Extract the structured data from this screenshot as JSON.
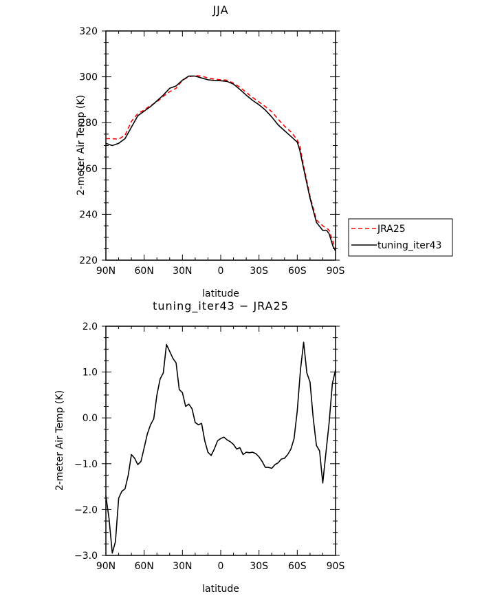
{
  "chart_data": [
    {
      "type": "line",
      "title": "JJA",
      "xlabel": "latitude",
      "ylabel": "2-meter Air Temp (K)",
      "xlim": [
        90,
        -90
      ],
      "ylim": [
        220,
        320
      ],
      "xticks": [
        90,
        60,
        30,
        0,
        -30,
        -60,
        -90
      ],
      "xtick_labels": [
        "90N",
        "60N",
        "30N",
        "0",
        "30S",
        "60S",
        "90S"
      ],
      "yticks": [
        220,
        240,
        260,
        280,
        300,
        320
      ],
      "ytick_labels": [
        "220",
        "240",
        "260",
        "280",
        "300",
        "320"
      ],
      "grid": false,
      "legend": "right",
      "series": [
        {
          "name": "JRA25",
          "color": "#ff0000",
          "dash": "dashed",
          "x": [
            90,
            85,
            80,
            75,
            70,
            65,
            60,
            55,
            50,
            45,
            40,
            35,
            30,
            25,
            20,
            15,
            10,
            5,
            0,
            -5,
            -10,
            -15,
            -20,
            -25,
            -30,
            -35,
            -40,
            -45,
            -50,
            -55,
            -60,
            -62,
            -65,
            -70,
            -75,
            -80,
            -83,
            -85,
            -88,
            -90
          ],
          "y": [
            273,
            273,
            272.8,
            274.5,
            280.5,
            284,
            285.5,
            287.5,
            289,
            291.5,
            293.5,
            295,
            298.5,
            300,
            300.5,
            300.3,
            299.5,
            299,
            298.7,
            298.5,
            297.2,
            295.5,
            293.2,
            291,
            289,
            287,
            284.8,
            281.5,
            278.5,
            276,
            272.5,
            270,
            261,
            248,
            237.5,
            235,
            234,
            233,
            228,
            225
          ]
        },
        {
          "name": "tuning_iter43",
          "color": "#000000",
          "dash": "solid",
          "x": [
            90,
            85,
            80,
            75,
            70,
            65,
            60,
            55,
            50,
            45,
            40,
            35,
            30,
            25,
            20,
            15,
            10,
            5,
            0,
            -5,
            -10,
            -15,
            -20,
            -25,
            -30,
            -35,
            -40,
            -45,
            -50,
            -55,
            -60,
            -62,
            -65,
            -70,
            -75,
            -80,
            -83,
            -85,
            -88,
            -90
          ],
          "y": [
            271,
            270,
            271,
            273,
            278,
            283,
            285,
            287,
            289.5,
            292,
            295,
            296,
            298.5,
            300.3,
            300.3,
            299.5,
            298.7,
            298.4,
            298.3,
            298,
            296.8,
            294.5,
            292,
            289.7,
            287.8,
            285.5,
            282.5,
            279,
            276.5,
            274,
            271.5,
            268,
            260,
            247,
            236.5,
            233,
            233,
            231.5,
            226,
            224
          ]
        }
      ]
    },
    {
      "type": "line",
      "title": "tuning_iter43 − JRA25",
      "xlabel": "latitude",
      "ylabel": "2-meter Air Temp (K)",
      "xlim": [
        90,
        -90
      ],
      "ylim": [
        -3.0,
        2.0
      ],
      "xticks": [
        90,
        60,
        30,
        0,
        -30,
        -60,
        -90
      ],
      "xtick_labels": [
        "90N",
        "60N",
        "30N",
        "0",
        "30S",
        "60S",
        "90S"
      ],
      "yticks": [
        -3.0,
        -2.0,
        -1.0,
        0.0,
        1.0,
        2.0
      ],
      "ytick_labels": [
        "−3.0",
        "−2.0",
        "−1.0",
        "0.0",
        "1.0",
        "2.0"
      ],
      "grid": false,
      "series": [
        {
          "color": "#000000",
          "x": [
            90,
            87.5,
            85,
            82.5,
            80,
            77.5,
            75,
            72.5,
            70,
            67.5,
            65,
            62.5,
            60,
            57.5,
            55,
            52.5,
            50,
            47.5,
            45,
            42.5,
            40,
            37.5,
            35,
            32.5,
            30,
            27.5,
            25,
            22.5,
            20,
            17.5,
            15,
            12.5,
            10,
            7.5,
            5,
            2.5,
            0,
            -2.5,
            -5,
            -7.5,
            -10,
            -12.5,
            -15,
            -17.5,
            -20,
            -22.5,
            -25,
            -27.5,
            -30,
            -32.5,
            -35,
            -37.5,
            -40,
            -42.5,
            -45,
            -47.5,
            -50,
            -52.5,
            -55,
            -57.5,
            -60,
            -62.5,
            -65,
            -67.5,
            -70,
            -72.5,
            -75,
            -77.5,
            -80,
            -82.5,
            -85,
            -87.5,
            -90
          ],
          "y": [
            -1.7,
            -2.2,
            -2.95,
            -2.7,
            -1.75,
            -1.6,
            -1.55,
            -1.25,
            -0.8,
            -0.88,
            -1.02,
            -0.95,
            -0.65,
            -0.35,
            -0.15,
            -0.02,
            0.5,
            0.85,
            0.98,
            1.6,
            1.45,
            1.3,
            1.2,
            0.62,
            0.55,
            0.25,
            0.3,
            0.2,
            -0.1,
            -0.15,
            -0.12,
            -0.5,
            -0.75,
            -0.82,
            -0.68,
            -0.5,
            -0.45,
            -0.42,
            -0.48,
            -0.52,
            -0.58,
            -0.68,
            -0.65,
            -0.8,
            -0.75,
            -0.76,
            -0.75,
            -0.78,
            -0.85,
            -0.95,
            -1.08,
            -1.08,
            -1.1,
            -1.02,
            -0.98,
            -0.9,
            -0.88,
            -0.8,
            -0.68,
            -0.45,
            0.15,
            1.05,
            1.65,
            0.98,
            0.78,
            0.0,
            -0.6,
            -0.72,
            -1.42,
            -0.75,
            -0.1,
            0.75,
            1.05
          ]
        }
      ]
    }
  ]
}
